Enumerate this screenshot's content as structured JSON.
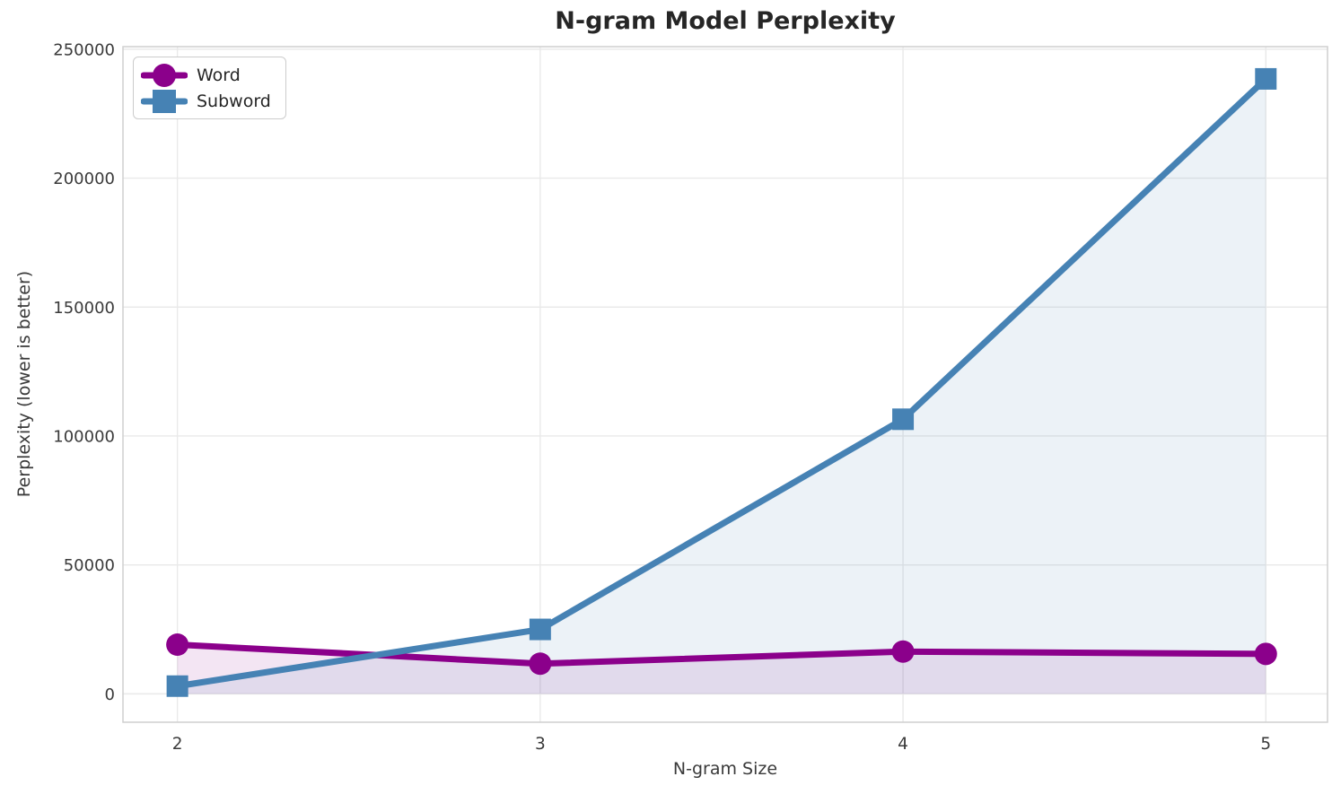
{
  "chart_data": {
    "type": "line",
    "title": "N-gram Model Perplexity",
    "xlabel": "N-gram Size",
    "ylabel": "Perplexity (lower is better)",
    "x": [
      2,
      3,
      4,
      5
    ],
    "series": [
      {
        "name": "Word",
        "color": "#8B008B",
        "marker": "circle",
        "values": [
          19100,
          11700,
          16400,
          15500
        ],
        "fill_to_zero": true,
        "fill_opacity": 0.1
      },
      {
        "name": "Subword",
        "color": "#4682B4",
        "marker": "square",
        "values": [
          3000,
          25000,
          106500,
          238500
        ],
        "fill_to_zero": true,
        "fill_opacity": 0.1
      }
    ],
    "xticks": [
      2,
      3,
      4,
      5
    ],
    "yticks": [
      0,
      50000,
      100000,
      150000,
      200000,
      250000
    ],
    "xlim": [
      1.85,
      5.17
    ],
    "ylim": [
      -11000,
      251000
    ],
    "grid": true,
    "legend_position": "upper left",
    "colors": {
      "grid": "#E9E9E9",
      "spine": "#CFCFCF",
      "tick_text": "#3A3A3A",
      "title_text": "#262626",
      "background": "#FFFFFF"
    }
  }
}
